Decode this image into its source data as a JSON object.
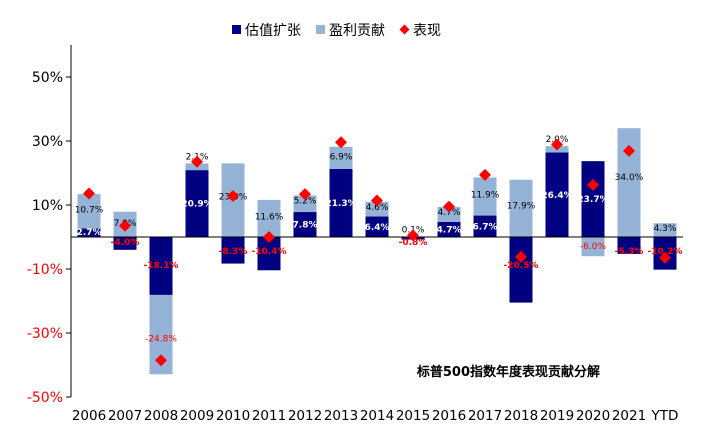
{
  "chart_data": {
    "type": "bar",
    "title": "标普500指数年度表现贡献分解",
    "categories": [
      "2006",
      "2007",
      "2008",
      "2009",
      "2010",
      "2011",
      "2012",
      "2013",
      "2014",
      "2015",
      "2016",
      "2017",
      "2018",
      "2019",
      "2020",
      "2021",
      "YTD"
    ],
    "series": [
      {
        "name": "估值扩张",
        "values": [
          2.7,
          -4.0,
          -18.1,
          20.9,
          -8.3,
          -10.4,
          7.8,
          21.3,
          6.4,
          -0.8,
          4.7,
          6.7,
          -20.5,
          26.4,
          23.7,
          -5.3,
          -10.2
        ]
      },
      {
        "name": "盈利贡献",
        "values": [
          10.7,
          7.9,
          -24.8,
          2.1,
          23.0,
          11.6,
          5.2,
          6.9,
          4.6,
          0.1,
          4.7,
          11.9,
          17.9,
          2.0,
          -6.0,
          34.0,
          4.3
        ]
      },
      {
        "name": "表现",
        "values": [
          13.6,
          3.5,
          -38.5,
          23.5,
          12.8,
          0.0,
          13.4,
          29.6,
          11.4,
          0.5,
          9.5,
          19.4,
          -6.2,
          28.9,
          16.3,
          26.9,
          -6.5
        ]
      }
    ],
    "ylim": [
      -50,
      60
    ],
    "yticks": [
      -50,
      -30,
      -10,
      10,
      30,
      50
    ],
    "ytick_labels": [
      "-50%",
      "-30%",
      "-10%",
      "10%",
      "30%",
      "50%"
    ],
    "legend_position": "top",
    "colors": {
      "valuation": "#000080",
      "earnings": "#95b3d7",
      "performance": "#ff0000",
      "negative_tick": "#ff0000",
      "positive_tick": "#000000"
    }
  }
}
